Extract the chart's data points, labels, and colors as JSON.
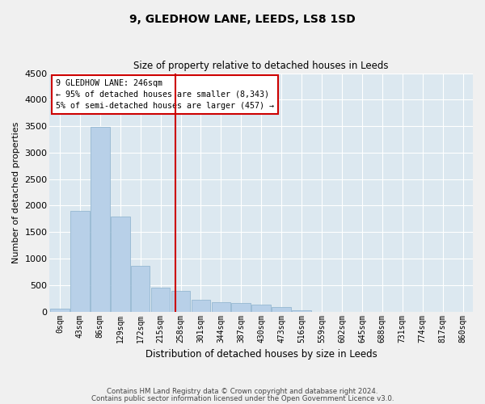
{
  "title": "9, GLEDHOW LANE, LEEDS, LS8 1SD",
  "subtitle": "Size of property relative to detached houses in Leeds",
  "xlabel": "Distribution of detached houses by size in Leeds",
  "ylabel": "Number of detached properties",
  "bar_color": "#b8d0e8",
  "bar_edge_color": "#8ab0cc",
  "background_color": "#dce8f0",
  "fig_background": "#f0f0f0",
  "categories": [
    "0sqm",
    "43sqm",
    "86sqm",
    "129sqm",
    "172sqm",
    "215sqm",
    "258sqm",
    "301sqm",
    "344sqm",
    "387sqm",
    "430sqm",
    "473sqm",
    "516sqm",
    "559sqm",
    "602sqm",
    "645sqm",
    "688sqm",
    "731sqm",
    "774sqm",
    "817sqm",
    "860sqm"
  ],
  "values": [
    50,
    1900,
    3480,
    1800,
    860,
    450,
    390,
    220,
    170,
    160,
    130,
    85,
    20,
    0,
    0,
    0,
    0,
    0,
    0,
    0,
    0
  ],
  "ylim": [
    0,
    4500
  ],
  "yticks": [
    0,
    500,
    1000,
    1500,
    2000,
    2500,
    3000,
    3500,
    4000,
    4500
  ],
  "vline_color": "#cc0000",
  "annotation_text": "9 GLEDHOW LANE: 246sqm\n← 95% of detached houses are smaller (8,343)\n5% of semi-detached houses are larger (457) →",
  "annotation_box_color": "#ffffff",
  "annotation_box_edge": "#cc0000",
  "footer1": "Contains HM Land Registry data © Crown copyright and database right 2024.",
  "footer2": "Contains public sector information licensed under the Open Government Licence v3.0."
}
